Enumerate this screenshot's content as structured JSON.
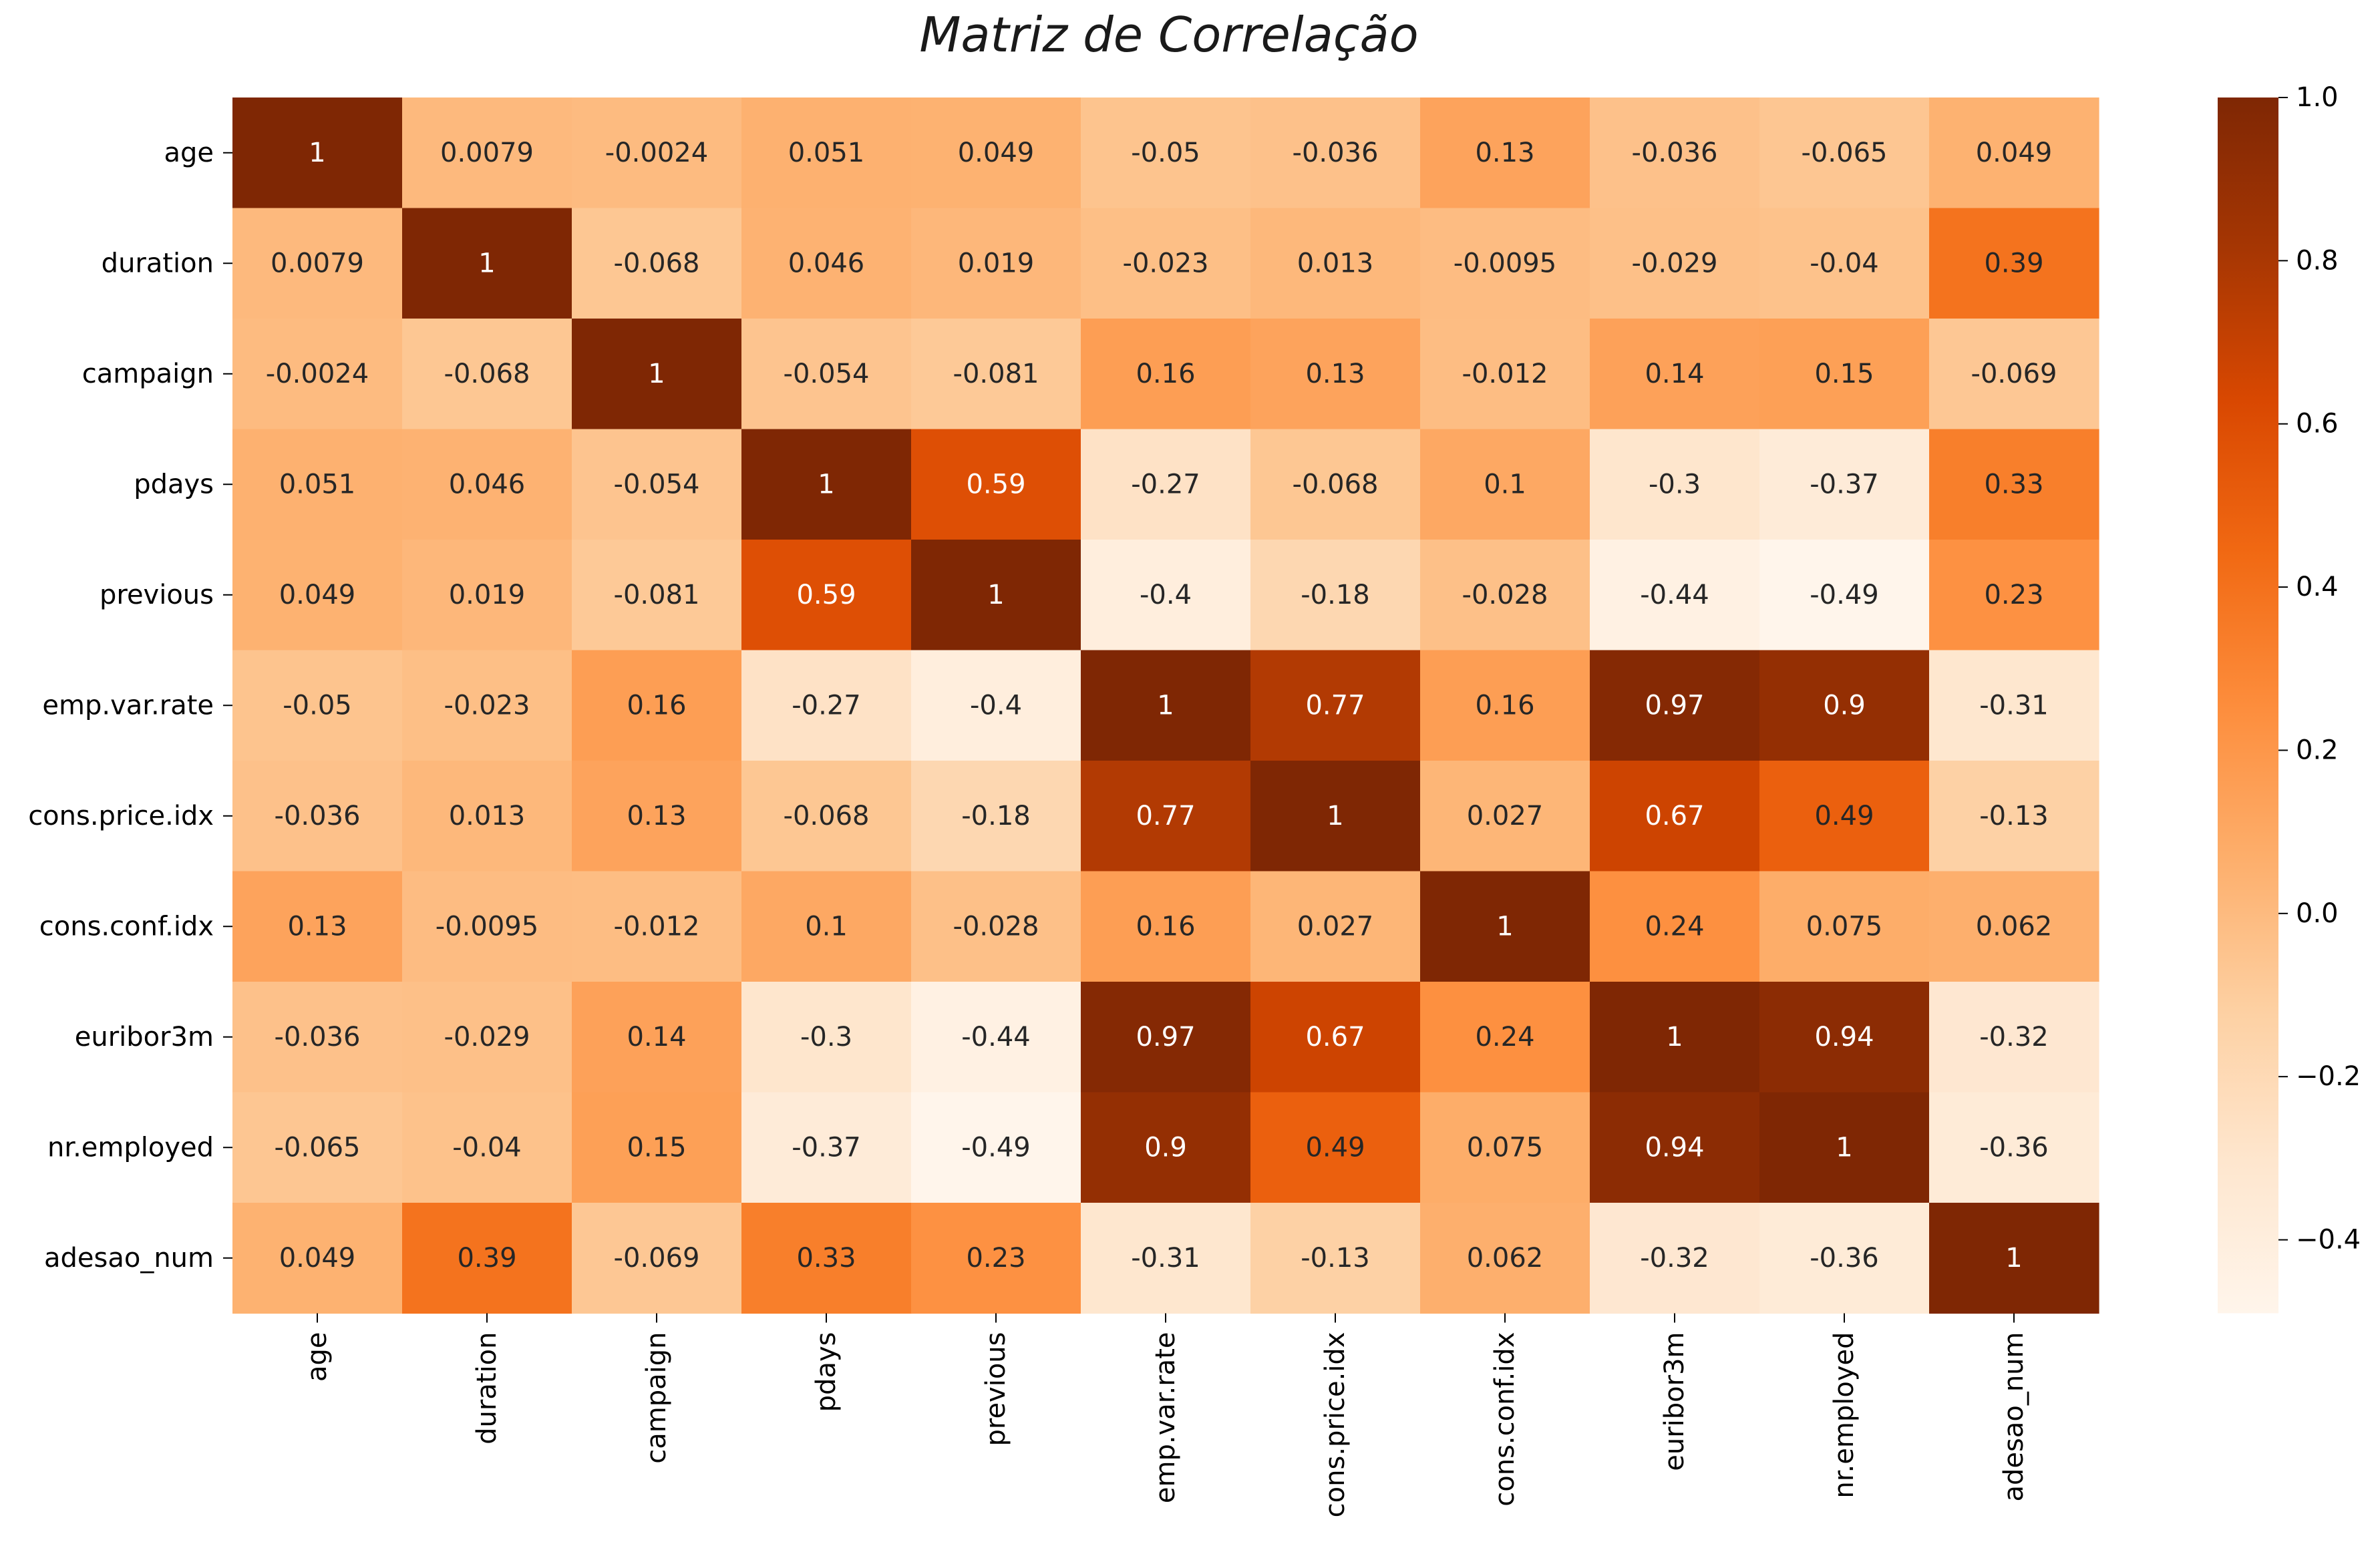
{
  "chart_data": {
    "type": "heatmap",
    "title": "Matriz de Correlação",
    "labels": [
      "age",
      "duration",
      "campaign",
      "pdays",
      "previous",
      "emp.var.rate",
      "cons.price.idx",
      "cons.conf.idx",
      "euribor3m",
      "nr.employed",
      "adesao_num"
    ],
    "values": [
      [
        1,
        0.0079,
        -0.0024,
        0.051,
        0.049,
        -0.05,
        -0.036,
        0.13,
        -0.036,
        -0.065,
        0.049
      ],
      [
        0.0079,
        1,
        -0.068,
        0.046,
        0.019,
        -0.023,
        0.013,
        -0.0095,
        -0.029,
        -0.04,
        0.39
      ],
      [
        -0.0024,
        -0.068,
        1,
        -0.054,
        -0.081,
        0.16,
        0.13,
        -0.012,
        0.14,
        0.15,
        -0.069
      ],
      [
        0.051,
        0.046,
        -0.054,
        1,
        0.59,
        -0.27,
        -0.068,
        0.1,
        -0.3,
        -0.37,
        0.33
      ],
      [
        0.049,
        0.019,
        -0.081,
        0.59,
        1,
        -0.4,
        -0.18,
        -0.028,
        -0.44,
        -0.49,
        0.23
      ],
      [
        -0.05,
        -0.023,
        0.16,
        -0.27,
        -0.4,
        1,
        0.77,
        0.16,
        0.97,
        0.9,
        -0.31
      ],
      [
        -0.036,
        0.013,
        0.13,
        -0.068,
        -0.18,
        0.77,
        1,
        0.027,
        0.67,
        0.49,
        -0.13
      ],
      [
        0.13,
        -0.0095,
        -0.012,
        0.1,
        -0.028,
        0.16,
        0.027,
        1,
        0.24,
        0.075,
        0.062
      ],
      [
        -0.036,
        -0.029,
        0.14,
        -0.3,
        -0.44,
        0.97,
        0.67,
        0.24,
        1,
        0.94,
        -0.32
      ],
      [
        -0.065,
        -0.04,
        0.15,
        -0.37,
        -0.49,
        0.9,
        0.49,
        0.075,
        0.94,
        1,
        -0.36
      ],
      [
        0.049,
        0.39,
        -0.069,
        0.33,
        0.23,
        -0.31,
        -0.13,
        0.062,
        -0.32,
        -0.36,
        1
      ]
    ],
    "colorbar": {
      "min": -0.49,
      "max": 1.0,
      "ticks": [
        1.0,
        0.8,
        0.6,
        0.4,
        0.2,
        0.0,
        -0.2,
        -0.4
      ],
      "tick_labels": [
        "1.0",
        "0.8",
        "0.6",
        "0.4",
        "0.2",
        "0.0",
        "−0.2",
        "−0.4"
      ]
    },
    "colormap": "Oranges",
    "colormap_stops": [
      "#fff5eb",
      "#fee6ce",
      "#fdd0a2",
      "#fdae6b",
      "#fd8d3c",
      "#f16913",
      "#d94801",
      "#a63603",
      "#7f2704"
    ]
  }
}
